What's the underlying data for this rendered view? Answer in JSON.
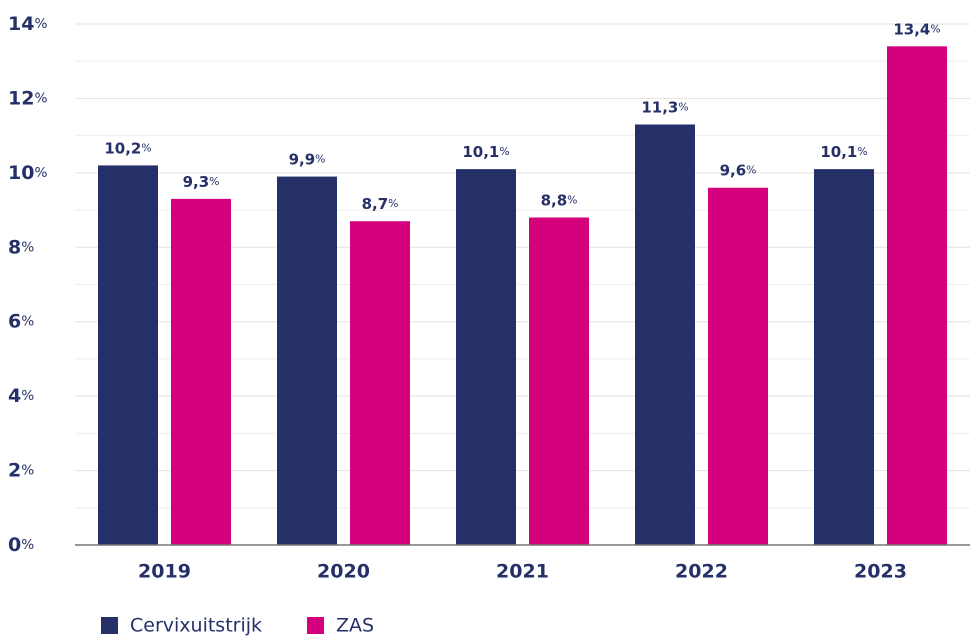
{
  "chart_data": {
    "type": "bar",
    "categories": [
      "2019",
      "2020",
      "2021",
      "2022",
      "2023"
    ],
    "series": [
      {
        "name": "Cervixuitstrijk",
        "color": "#263068",
        "values": [
          10.2,
          9.9,
          10.1,
          11.3,
          10.1
        ],
        "value_labels": [
          "10,2%",
          "9,9%",
          "10,1%",
          "11,3%",
          "10,1%"
        ]
      },
      {
        "name": "ZAS",
        "color": "#d4007c",
        "values": [
          9.3,
          8.7,
          8.8,
          9.6,
          13.4
        ],
        "value_labels": [
          "9,3%",
          "8,7%",
          "8,8%",
          "9,6%",
          "13,4%"
        ]
      }
    ],
    "ylim": [
      0,
      14
    ],
    "yticks": [
      {
        "value": 0,
        "label": "0%"
      },
      {
        "value": 2,
        "label": "2%"
      },
      {
        "value": 4,
        "label": "4%"
      },
      {
        "value": 6,
        "label": "6%"
      },
      {
        "value": 8,
        "label": "8%"
      },
      {
        "value": 10,
        "label": "10%"
      },
      {
        "value": 12,
        "label": "12%"
      },
      {
        "value": 14,
        "label": "14%"
      }
    ],
    "minor_yticks": [
      1,
      3,
      5,
      7,
      9,
      11,
      13
    ],
    "grid": true
  }
}
